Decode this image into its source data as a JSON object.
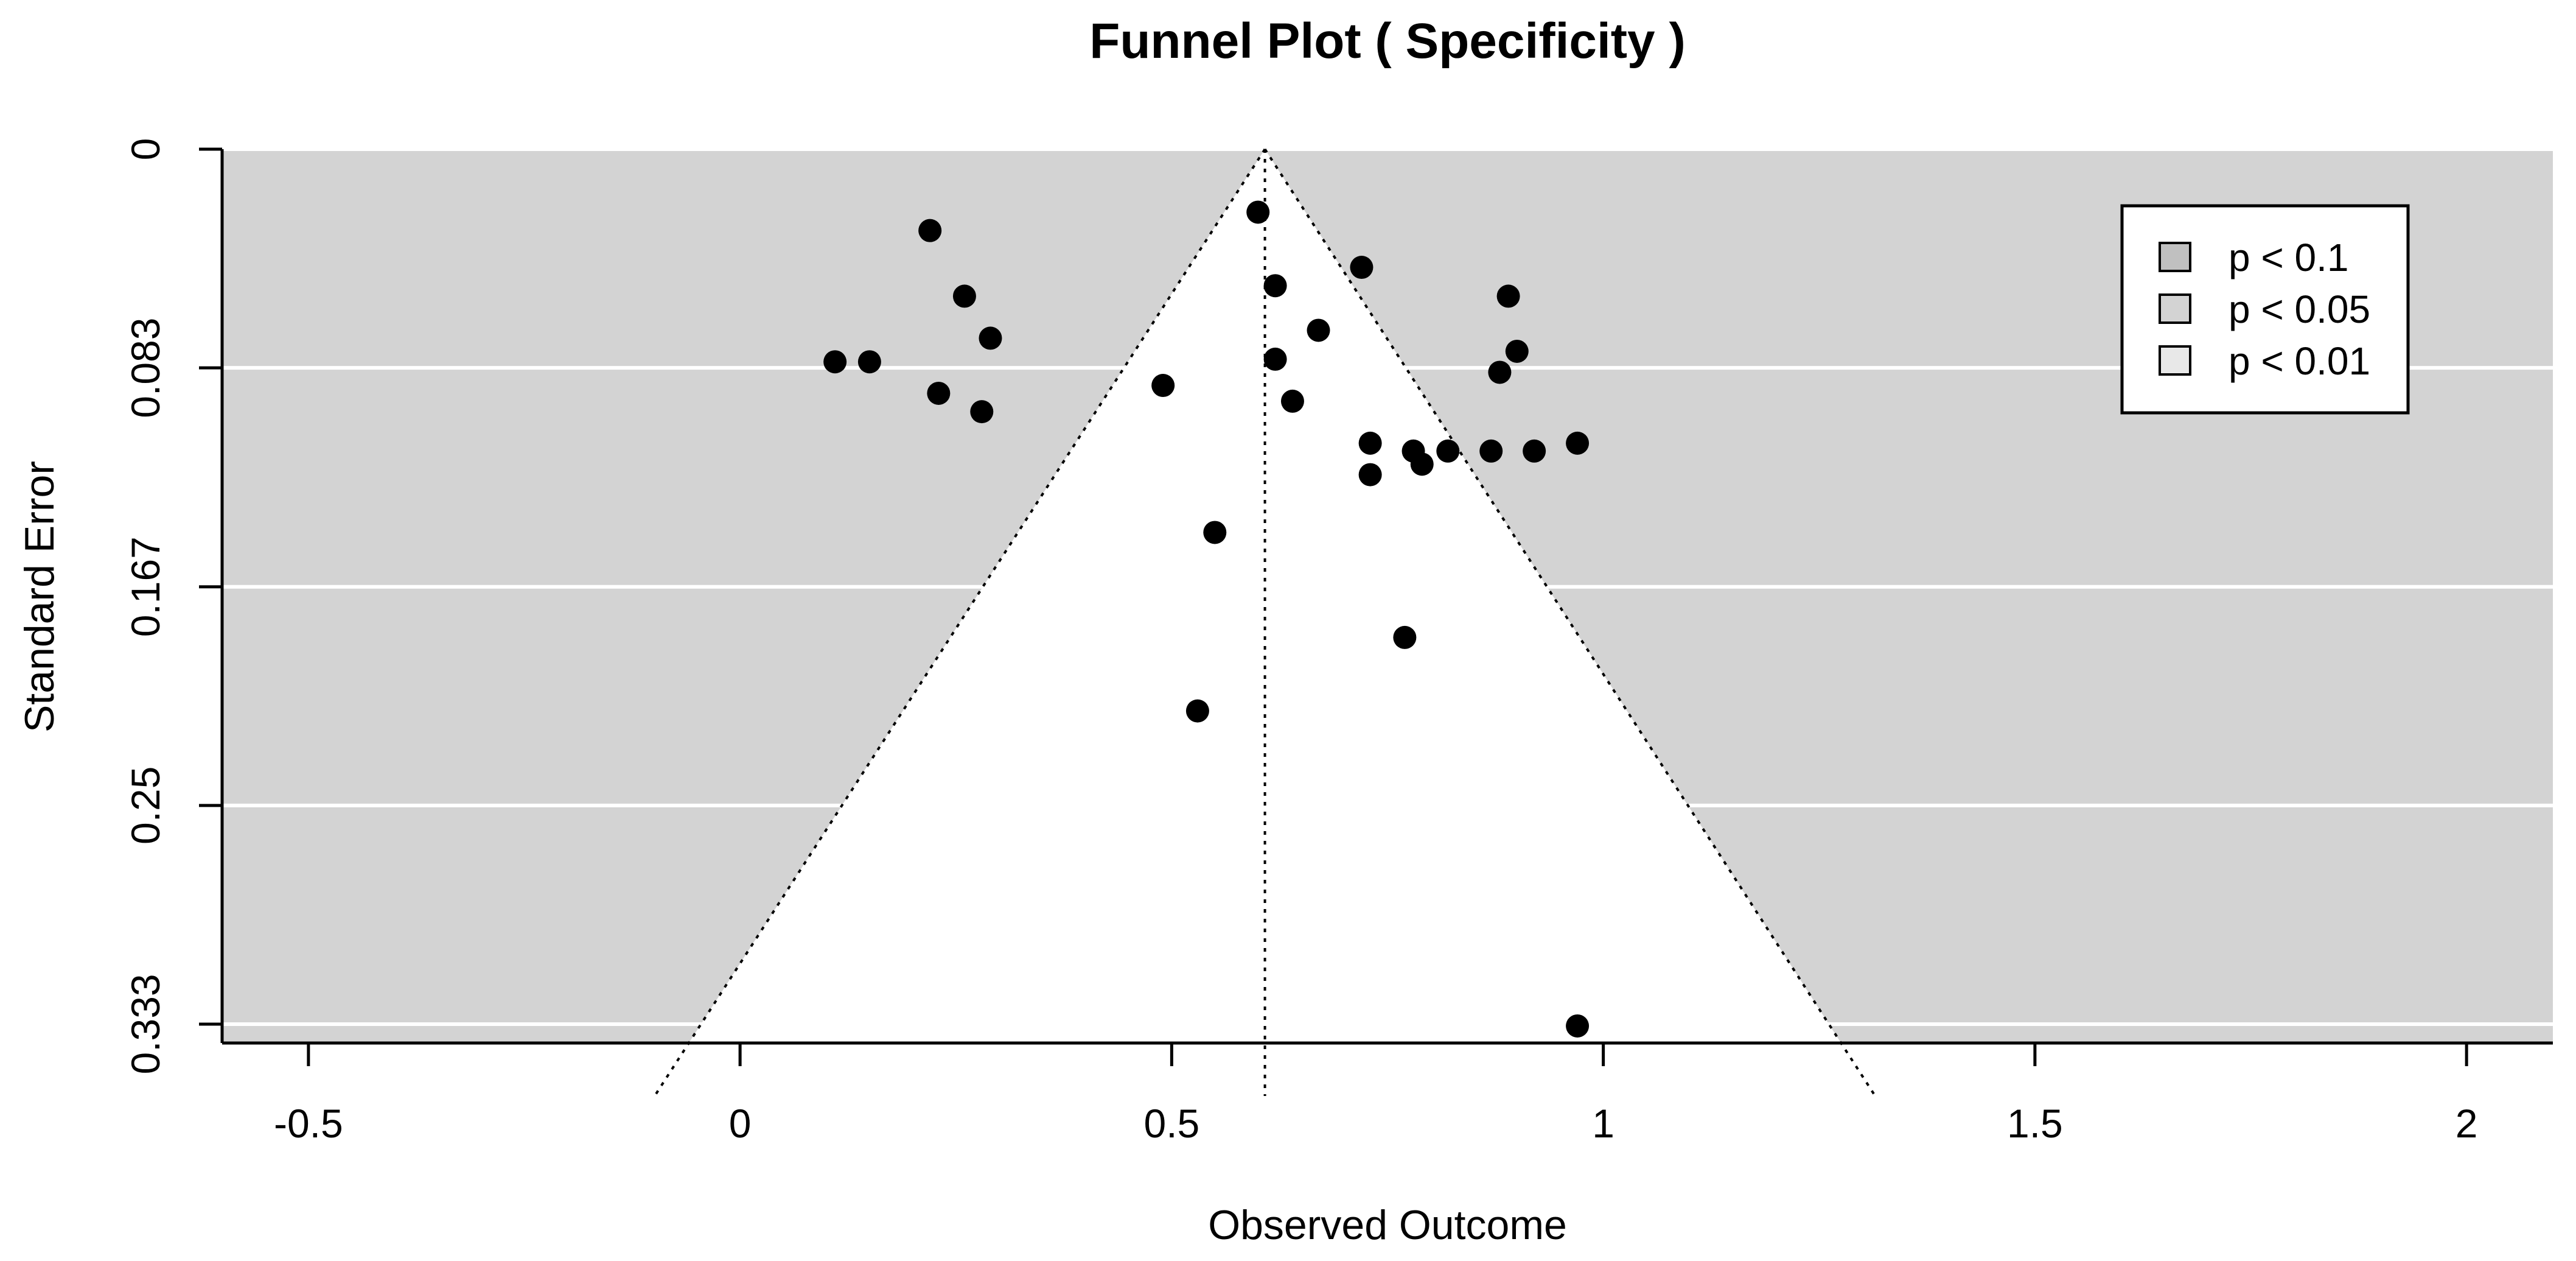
{
  "chart_data": {
    "type": "scatter",
    "title": "Funnel Plot (  Specificity  )",
    "xlabel": "Observed Outcome",
    "ylabel": "Standard Error",
    "xlim": [
      -0.6,
      2.1
    ],
    "ylim": [
      0,
      0.3405
    ],
    "y_reversed": true,
    "xticks": [
      -0.5,
      0,
      0.5,
      1,
      1.5,
      2
    ],
    "xtick_labels": [
      "-0.5",
      "0",
      "0.5",
      "1",
      "1.5",
      "2"
    ],
    "yticks": [
      0,
      0.0833,
      0.1667,
      0.25,
      0.3333
    ],
    "ytick_labels": [
      "0",
      "0.083",
      "0.167",
      "0.25",
      "0.333"
    ],
    "grid": "horizontal",
    "panel_color": "#d3d3d3",
    "funnel_fill": "#ffffff",
    "funnel_center": 0.608,
    "funnel_z": 1.96,
    "legend": {
      "position": "top-right",
      "entries": [
        {
          "label": "p < 0.1",
          "color": "#c0c0c0"
        },
        {
          "label": "p < 0.05",
          "color": "#d3d3d3"
        },
        {
          "label": "p < 0.01",
          "color": "#e8e8e8"
        }
      ]
    },
    "points": [
      {
        "x": 0.22,
        "y": 0.031
      },
      {
        "x": 0.26,
        "y": 0.056
      },
      {
        "x": 0.29,
        "y": 0.072
      },
      {
        "x": 0.11,
        "y": 0.081
      },
      {
        "x": 0.15,
        "y": 0.081
      },
      {
        "x": 0.23,
        "y": 0.093
      },
      {
        "x": 0.28,
        "y": 0.1
      },
      {
        "x": 0.49,
        "y": 0.09
      },
      {
        "x": 0.6,
        "y": 0.024
      },
      {
        "x": 0.62,
        "y": 0.052
      },
      {
        "x": 0.62,
        "y": 0.08
      },
      {
        "x": 0.64,
        "y": 0.096
      },
      {
        "x": 0.67,
        "y": 0.069
      },
      {
        "x": 0.72,
        "y": 0.045
      },
      {
        "x": 0.73,
        "y": 0.112
      },
      {
        "x": 0.73,
        "y": 0.124
      },
      {
        "x": 0.78,
        "y": 0.115
      },
      {
        "x": 0.79,
        "y": 0.12
      },
      {
        "x": 0.82,
        "y": 0.115
      },
      {
        "x": 0.87,
        "y": 0.115
      },
      {
        "x": 0.92,
        "y": 0.115
      },
      {
        "x": 0.97,
        "y": 0.112
      },
      {
        "x": 0.88,
        "y": 0.085
      },
      {
        "x": 0.9,
        "y": 0.077
      },
      {
        "x": 0.89,
        "y": 0.056
      },
      {
        "x": 0.55,
        "y": 0.146
      },
      {
        "x": 0.77,
        "y": 0.186
      },
      {
        "x": 0.53,
        "y": 0.214
      },
      {
        "x": 0.97,
        "y": 0.334
      }
    ]
  }
}
